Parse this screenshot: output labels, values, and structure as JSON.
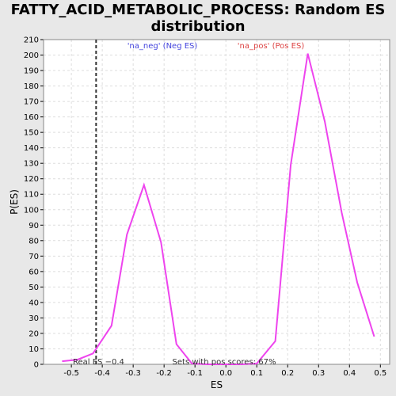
{
  "chart_data": {
    "type": "line",
    "title_line1": "FATTY_ACID_METABOLIC_PROCESS: Random ES",
    "title_line2": "distribution",
    "xlabel": "ES",
    "ylabel": "P(ES)",
    "xlim": [
      -0.59,
      0.53
    ],
    "ylim": [
      0,
      210
    ],
    "xticks": [
      -0.5,
      -0.4,
      -0.3,
      -0.2,
      -0.1,
      0.0,
      0.1,
      0.2,
      0.3,
      0.4,
      0.5
    ],
    "xtick_labels": [
      "-0.5",
      "-0.4",
      "-0.3",
      "-0.2",
      "-0.1",
      "0.0",
      "0.1",
      "0.2",
      "0.3",
      "0.4",
      "0.5"
    ],
    "yticks": [
      0,
      10,
      20,
      30,
      40,
      50,
      60,
      70,
      80,
      90,
      100,
      110,
      120,
      130,
      140,
      150,
      160,
      170,
      180,
      190,
      200,
      210
    ],
    "grid": true,
    "line_color": "#ee44ee",
    "series": [
      {
        "x": [
          -0.53,
          -0.48,
          -0.43,
          -0.37,
          -0.32,
          -0.265,
          -0.21,
          -0.16,
          -0.11,
          -0.06,
          0.0,
          0.05,
          0.1,
          0.16,
          0.21,
          0.265,
          0.32,
          0.375,
          0.425,
          0.48
        ],
        "y": [
          2,
          3,
          7,
          25,
          84,
          116,
          79,
          13,
          0.5,
          0,
          0,
          0,
          0.5,
          15,
          129,
          201,
          157,
          98,
          53,
          18
        ]
      }
    ],
    "real_es": {
      "value": -0.42,
      "label": "Real ES −0.4",
      "color": "#333333"
    },
    "annotations": {
      "neg_label": "'na_neg' (Neg ES)",
      "neg_color": "#4444dd",
      "pos_label": "'na_pos' (Pos ES)",
      "pos_color": "#dd4444",
      "sets_label": "Sets with pos scores: 67%",
      "sets_color": "#333333"
    }
  }
}
